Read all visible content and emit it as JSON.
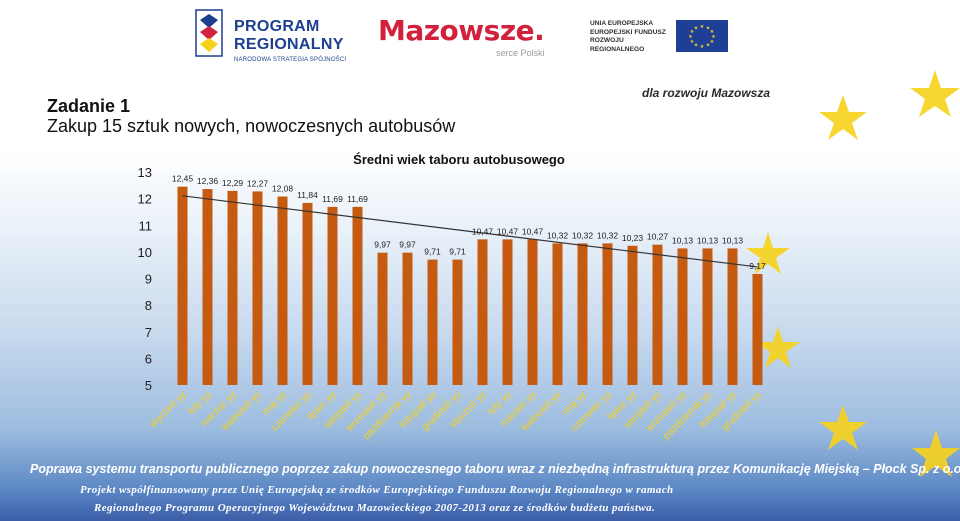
{
  "header": {
    "program_logo": {
      "line1": "PROGRAM",
      "line2": "REGIONALNY",
      "line3": "NARODOWA STRATEGIA SPÓJNOŚCI"
    },
    "mazowsze_logo": {
      "name": "Mazowsze.",
      "sub": "serce Polski"
    },
    "eu_logo": {
      "line1": "UNIA EUROPEJSKA",
      "line2": "EUROPEJSKI FUNDUSZ",
      "line3": "ROZWOJU REGIONALNEGO"
    },
    "slogan": "dla rozwoju Mazowsza"
  },
  "slide": {
    "title": "Zadanie 1",
    "subtitle": "Zakup 15 sztuk nowych, nowoczesnych autobusów"
  },
  "chart_data": {
    "type": "bar",
    "title": "Średni wiek taboru autobusowego",
    "xlabel": "",
    "ylabel": "",
    "ylim": [
      5,
      13
    ],
    "yticks": [
      "5",
      "6",
      "7",
      "8",
      "9",
      "10",
      "11",
      "12",
      "13"
    ],
    "categories": [
      "styczeń yy",
      "luty yy",
      "marzec yy",
      "kwiecień yy",
      "maj yy",
      "czerwiec yy",
      "lipiec yy",
      "sierpień yy",
      "wrzesień yy",
      "październik yy",
      "listopad yy",
      "grudzień yy",
      "styczeń yy",
      "luty yy",
      "marzec yy",
      "kwiecień yy",
      "maj yy",
      "czerwiec yy",
      "lipiec yy",
      "sierpień yy",
      "wrzesień yy",
      "październik yy",
      "listopad yy",
      "grudzień yy"
    ],
    "values": [
      12.45,
      12.36,
      12.29,
      12.27,
      12.08,
      11.84,
      11.69,
      11.69,
      9.97,
      9.97,
      9.71,
      9.71,
      10.47,
      10.47,
      10.47,
      10.32,
      10.32,
      10.32,
      10.23,
      10.27,
      10.13,
      10.13,
      10.13,
      9.17
    ],
    "data_labels": [
      "12,45",
      "12,36",
      "12,29",
      "12,27",
      "12,08",
      "11,84",
      "11,69",
      "11,69",
      "9,97",
      "9,97",
      "9,71",
      "9,71",
      "10,47",
      "10,47",
      "10,47",
      "10,32",
      "10,32",
      "10,32",
      "10,23",
      "10,27",
      "10,13",
      "10,13",
      "10,13",
      "9,17"
    ],
    "trendline": true,
    "grid": false,
    "colors": {
      "bar": "#c55a11",
      "trend": "#333333"
    }
  },
  "footer": {
    "line1": "Poprawa systemu transportu publicznego poprzez zakup nowoczesnego taboru wraz z niezbędną infrastrukturą przez Komunikację Miejską – Płock Sp. z o.o.",
    "line2": "Projekt współfinansowany przez Unię Europejską ze środków Europejskiego Funduszu Rozwoju Regionalnego w ramach",
    "line3": "Regionalnego Programu Operacyjnego Województwa Mazowieckiego 2007-2013 oraz ze środków budżetu państwa."
  },
  "theme": {
    "text": "#111111",
    "footer_text": "#ffffff",
    "star": "#f7d21b",
    "brand_blue": "#1d3f8f",
    "brand_red": "#d2213c"
  }
}
